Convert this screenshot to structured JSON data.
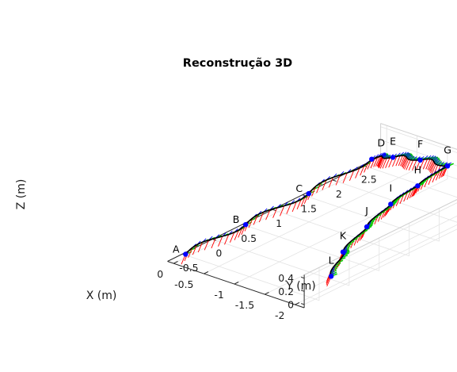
{
  "chart_data": {
    "type": "line3d",
    "title": "Reconstrução 3D",
    "xlabel": "X (m)",
    "ylabel": "Y (m)",
    "zlabel": "Z (m)",
    "xlim": [
      -2.15,
      0.1
    ],
    "ylim": [
      -0.75,
      2.8
    ],
    "zlim": [
      -0.05,
      0.45
    ],
    "x_ticks": [
      -2,
      -1.5,
      -1,
      -0.5,
      0
    ],
    "x_tick_labels": [
      "-2",
      "-1.5",
      "-1",
      "-0.5",
      "0"
    ],
    "y_ticks": [
      -0.5,
      0,
      0.5,
      1,
      1.5,
      2,
      2.5
    ],
    "y_tick_labels": [
      "-0.5",
      "0",
      "0.5",
      "1",
      "1.5",
      "2",
      "2.5"
    ],
    "z_ticks": [
      0,
      0.2,
      0.4
    ],
    "z_tick_labels": [
      "0",
      "0.2",
      "0.4"
    ],
    "grid": true,
    "colors": {
      "trajectory": "#000000",
      "frame_x_axis": "#ff0000",
      "frame_y_axis": "#00cc00",
      "frame_z_axis": "#0000ff"
    },
    "waypoints": [
      {
        "label": "A",
        "x": 0.0,
        "y": -0.55,
        "z": 0.0
      },
      {
        "label": "B",
        "x": 0.0,
        "y": 0.45,
        "z": 0.0
      },
      {
        "label": "C",
        "x": 0.0,
        "y": 1.5,
        "z": 0.0
      },
      {
        "label": "D",
        "x": 0.0,
        "y": 2.55,
        "z": 0.05
      },
      {
        "label": "E",
        "x": -0.3,
        "y": 2.6,
        "z": 0.15
      },
      {
        "label": "F",
        "x": -0.75,
        "y": 2.6,
        "z": 0.25
      },
      {
        "label": "G",
        "x": -1.2,
        "y": 2.6,
        "z": 0.3
      },
      {
        "label": "H",
        "x": -1.3,
        "y": 2.0,
        "z": 0.3
      },
      {
        "label": "I",
        "x": -1.4,
        "y": 1.45,
        "z": 0.3
      },
      {
        "label": "J",
        "x": -1.55,
        "y": 0.9,
        "z": 0.25
      },
      {
        "label": "K",
        "x": -1.75,
        "y": 0.3,
        "z": 0.2
      },
      {
        "label": "L",
        "x": -2.05,
        "y": -0.2,
        "z": 0.15
      }
    ]
  }
}
